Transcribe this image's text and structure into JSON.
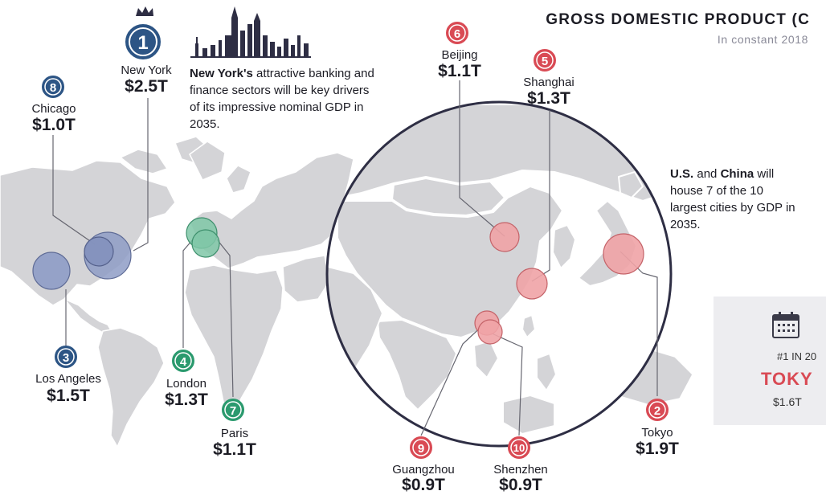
{
  "header": {
    "title": "GROSS DOMESTIC PRODUCT (C",
    "subtitle": "In constant 2018"
  },
  "cities": [
    {
      "rank": "1",
      "name": "New York",
      "value": "$2.5T",
      "region": "americas"
    },
    {
      "rank": "2",
      "name": "Tokyo",
      "value": "$1.9T",
      "region": "asia"
    },
    {
      "rank": "3",
      "name": "Los Angeles",
      "value": "$1.5T",
      "region": "americas"
    },
    {
      "rank": "4",
      "name": "London",
      "value": "$1.3T",
      "region": "europe"
    },
    {
      "rank": "5",
      "name": "Shanghai",
      "value": "$1.3T",
      "region": "asia"
    },
    {
      "rank": "6",
      "name": "Beijing",
      "value": "$1.1T",
      "region": "asia"
    },
    {
      "rank": "7",
      "name": "Paris",
      "value": "$1.1T",
      "region": "europe"
    },
    {
      "rank": "8",
      "name": "Chicago",
      "value": "$1.0T",
      "region": "americas"
    },
    {
      "rank": "9",
      "name": "Guangzhou",
      "value": "$0.9T",
      "region": "asia"
    },
    {
      "rank": "10",
      "name": "Shenzhen",
      "value": "$0.9T",
      "region": "asia"
    }
  ],
  "notes": {
    "new_york_bold": "New York's",
    "new_york_rest": " attractive banking and finance sectors will be key drivers of its impressive nominal GDP in 2035.",
    "china_part1_bold": "U.S.",
    "china_part2": " and ",
    "china_part3_bold": "China",
    "china_part4": " will house 7 of the 10 largest cities by GDP in 2035."
  },
  "callout": {
    "rank_text": "#1 IN 20",
    "city": "TOKY",
    "value": "$1.6T"
  },
  "colors": {
    "americas": "#8e9cc6",
    "europe": "#7fc7a7",
    "asia": "#f0a3a6",
    "badge_americas": "#2d5585",
    "badge_asia": "#d94a54",
    "badge_europe": "#2b9a6e",
    "land": "#d4d4d7",
    "ocean": "#ffffff",
    "ring": "#2e2e44"
  },
  "icons": [
    "crown-icon",
    "calendar-icon",
    "skyline-icon"
  ]
}
